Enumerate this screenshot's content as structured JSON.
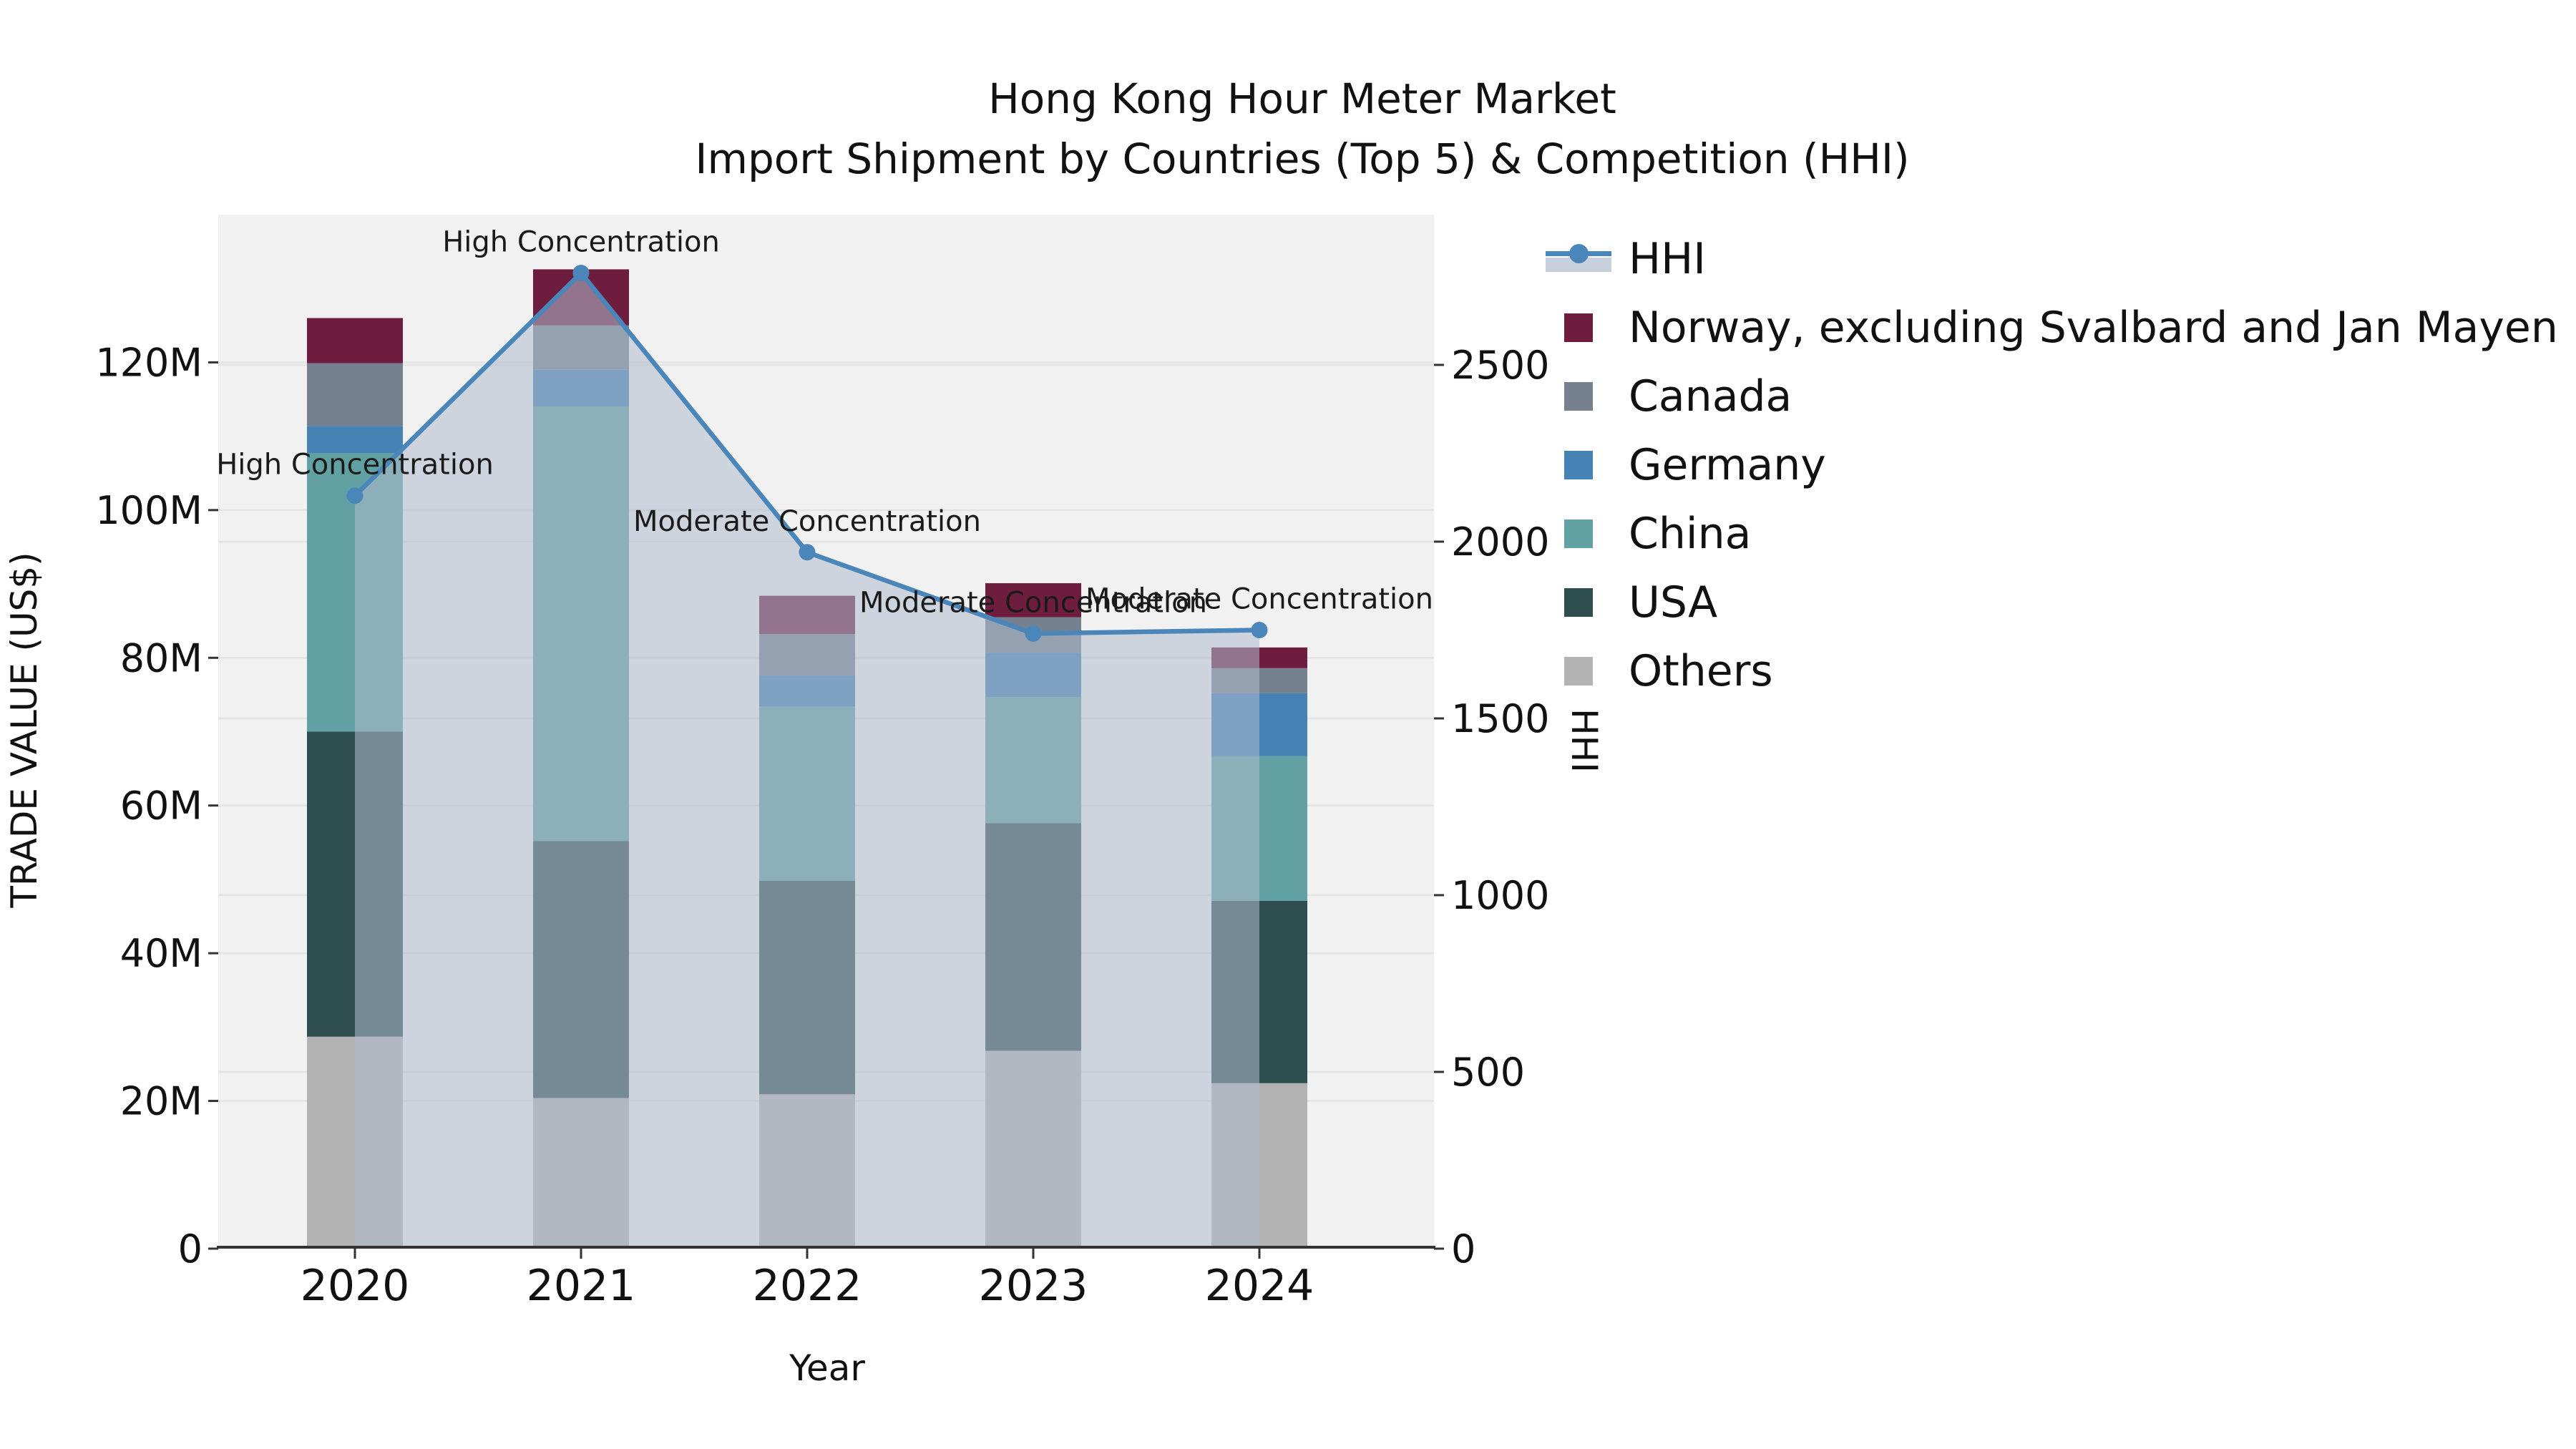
{
  "title": {
    "line1": "Hong Kong Hour Meter Market",
    "line2": "Import Shipment by Countries (Top 5) & Competition (HHI)"
  },
  "axes": {
    "x_title": "Year",
    "y_left_title": "TRADE VALUE (US$)",
    "y_right_title": "HHI",
    "x_tick_labels": [
      "2020",
      "2021",
      "2022",
      "2023",
      "2024"
    ],
    "y_left_tick_labels": [
      "0",
      "20M",
      "40M",
      "60M",
      "80M",
      "100M",
      "120M"
    ],
    "y_left_tick_values": [
      0,
      20,
      40,
      60,
      80,
      100,
      120
    ],
    "y_right_tick_labels": [
      "0",
      "500",
      "1000",
      "1500",
      "2000",
      "2500"
    ],
    "y_right_tick_values": [
      0,
      500,
      1000,
      1500,
      2000,
      2500
    ]
  },
  "legend": {
    "items": [
      {
        "label": "HHI",
        "color": "#4a86ba",
        "type": "line"
      },
      {
        "label": "Norway, excluding Svalbard and Jan Mayen",
        "color": "#6f1d3e",
        "type": "patch"
      },
      {
        "label": "Canada",
        "color": "#75818f",
        "type": "patch"
      },
      {
        "label": "Germany",
        "color": "#4682b4",
        "type": "patch"
      },
      {
        "label": "China",
        "color": "#62a1a3",
        "type": "patch"
      },
      {
        "label": "USA",
        "color": "#2f4f4f",
        "type": "patch"
      },
      {
        "label": "Others",
        "color": "#b3b3b3",
        "type": "patch"
      }
    ]
  },
  "colors": {
    "plot_background": "#f1f1f1",
    "gridline": "#e4e4e4",
    "axis_line": "#333333",
    "hhi_line": "#4a86ba",
    "hhi_area_fill": "#aebbcd",
    "hhi_area_opacity": 0.55
  },
  "chart_data": {
    "type": "stacked-bar+line",
    "title": "Hong Kong Hour Meter Market — Import Shipment by Countries (Top 5) & Competition (HHI)",
    "xlabel": "Year",
    "ylabel_left": "TRADE VALUE (US$)",
    "ylabel_right": "HHI",
    "categories": [
      "2020",
      "2021",
      "2022",
      "2023",
      "2024"
    ],
    "units": "millions of US$ (left axis), HHI index (right axis)",
    "stack_order_bottom_to_top": [
      "Others",
      "USA",
      "China",
      "Germany",
      "Canada",
      "Norway, excluding Svalbard and Jan Mayen"
    ],
    "series": [
      {
        "name": "Others",
        "color": "#b3b3b3",
        "values": [
          28.7,
          20.4,
          20.9,
          26.8,
          22.4
        ]
      },
      {
        "name": "USA",
        "color": "#2f4f4f",
        "values": [
          41.3,
          34.8,
          28.9,
          30.8,
          24.7
        ]
      },
      {
        "name": "China",
        "color": "#62a1a3",
        "values": [
          37.7,
          58.8,
          23.6,
          17.1,
          19.6
        ]
      },
      {
        "name": "Germany",
        "color": "#4682b4",
        "values": [
          3.7,
          5.0,
          4.2,
          6.0,
          8.5
        ]
      },
      {
        "name": "Canada",
        "color": "#75818f",
        "values": [
          8.5,
          6.0,
          5.6,
          4.8,
          3.4
        ]
      },
      {
        "name": "Norway, excluding Svalbard and Jan Mayen",
        "color": "#6f1d3e",
        "values": [
          6.1,
          7.6,
          5.2,
          4.6,
          2.8
        ]
      }
    ],
    "bar_totals": [
      126.1,
      132.6,
      88.4,
      90.1,
      81.4
    ],
    "line": {
      "name": "HHI",
      "color": "#4a86ba",
      "values": [
        2130,
        2760,
        1970,
        1740,
        1750
      ],
      "area_fill": true
    },
    "annotations": [
      {
        "category": "2020",
        "text": "High Concentration"
      },
      {
        "category": "2021",
        "text": "High Concentration"
      },
      {
        "category": "2022",
        "text": "Moderate Concentration"
      },
      {
        "category": "2023",
        "text": "Moderate Concentration"
      },
      {
        "category": "2024",
        "text": "Moderate Concentration"
      }
    ],
    "ylim_left": [
      0,
      140
    ],
    "ylim_right": [
      0,
      2925
    ],
    "grid": true,
    "legend_position": "upper right, outside plot"
  }
}
